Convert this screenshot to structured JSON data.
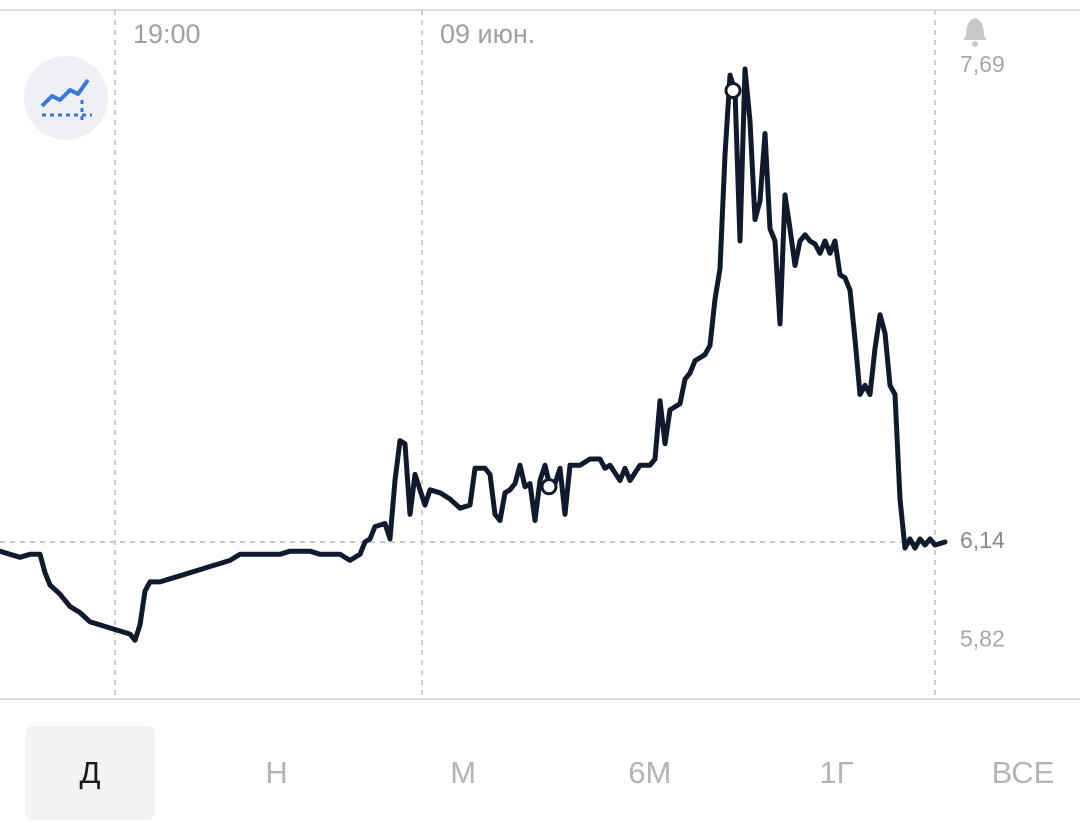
{
  "chart_data": {
    "type": "line",
    "x": [
      0,
      1,
      2,
      3,
      4,
      4.5,
      5,
      6,
      7,
      8,
      9,
      10,
      11,
      12,
      13,
      13.5,
      14,
      14.5,
      15,
      16,
      17,
      18,
      19,
      20,
      21,
      22,
      23,
      24,
      25,
      26,
      27,
      28,
      29,
      30,
      31,
      32,
      33,
      34,
      35,
      36,
      36.5,
      37,
      37.5,
      38.5,
      39,
      39.5,
      40,
      40.5,
      41,
      41.5,
      42,
      42.5,
      43,
      44,
      45,
      46,
      47,
      47.5,
      48.5,
      49,
      49.5,
      50,
      50.5,
      51,
      51.5,
      52,
      52.5,
      53,
      53.5,
      54,
      54.5,
      55,
      55.5,
      56,
      56.5,
      57,
      58,
      59,
      60,
      60.5,
      61,
      62,
      62.5,
      63,
      64,
      65,
      65.5,
      66,
      66.5,
      67,
      68,
      68.5,
      69,
      69.5,
      70.5,
      71,
      71.5,
      72,
      72.5,
      73,
      73.5,
      74,
      74.5,
      75,
      75.5,
      76,
      76.5,
      77,
      77.5,
      78,
      78.5,
      79,
      79.5,
      80,
      80.5,
      81,
      81.5,
      82,
      82.5,
      83,
      83.5,
      84,
      84.5,
      85,
      85.5,
      86,
      86.5,
      87,
      87.5,
      88,
      88.5,
      89,
      89.5,
      90,
      90.5,
      91,
      91.5,
      92,
      92.5,
      93,
      93.5,
      94.5
    ],
    "values": [
      6.11,
      6.1,
      6.09,
      6.1,
      6.1,
      6.04,
      6.0,
      5.97,
      5.93,
      5.91,
      5.88,
      5.87,
      5.86,
      5.85,
      5.84,
      5.82,
      5.87,
      5.98,
      6.01,
      6.01,
      6.02,
      6.03,
      6.04,
      6.05,
      6.06,
      6.07,
      6.08,
      6.1,
      6.1,
      6.1,
      6.1,
      6.1,
      6.11,
      6.11,
      6.11,
      6.1,
      6.1,
      6.1,
      6.08,
      6.1,
      6.14,
      6.15,
      6.19,
      6.2,
      6.15,
      6.34,
      6.47,
      6.46,
      6.23,
      6.36,
      6.31,
      6.26,
      6.31,
      6.3,
      6.28,
      6.25,
      6.26,
      6.38,
      6.38,
      6.36,
      6.23,
      6.21,
      6.3,
      6.31,
      6.33,
      6.39,
      6.32,
      6.33,
      6.21,
      6.34,
      6.39,
      6.32,
      6.33,
      6.38,
      6.23,
      6.39,
      6.39,
      6.41,
      6.41,
      6.38,
      6.39,
      6.34,
      6.38,
      6.34,
      6.39,
      6.39,
      6.41,
      6.6,
      6.46,
      6.57,
      6.59,
      6.67,
      6.69,
      6.73,
      6.75,
      6.78,
      6.93,
      7.03,
      7.4,
      7.66,
      7.61,
      7.12,
      7.68,
      7.51,
      7.19,
      7.25,
      7.47,
      7.16,
      7.12,
      6.85,
      7.27,
      7.16,
      7.04,
      7.12,
      7.14,
      7.12,
      7.11,
      7.08,
      7.12,
      7.08,
      7.12,
      7.01,
      7.0,
      6.96,
      6.8,
      6.62,
      6.65,
      6.62,
      6.77,
      6.88,
      6.82,
      6.65,
      6.62,
      6.28,
      6.12,
      6.15,
      6.12,
      6.15,
      6.13,
      6.15,
      6.13,
      6.14
    ],
    "color": "#111a2c",
    "xlim": [
      0,
      108
    ],
    "xticks": [
      {
        "value": 11.5,
        "label": "19:00"
      },
      {
        "value": 42.2,
        "label": "09 июн."
      }
    ],
    "ylim": [
      5.632,
      7.872
    ],
    "yticks": [
      {
        "value": 7.69,
        "label": "7,69"
      },
      {
        "value": 5.82,
        "label": "5,82"
      }
    ],
    "current_price": {
      "value": 6.14,
      "label": "6,14"
    },
    "markers": [
      {
        "x": 73.3,
        "value": 7.61
      },
      {
        "x": 54.9,
        "value": 6.32
      }
    ],
    "periods": [
      "Д",
      "Н",
      "М",
      "6М",
      "1Г",
      "ВСЕ"
    ],
    "selected_period": 0
  }
}
